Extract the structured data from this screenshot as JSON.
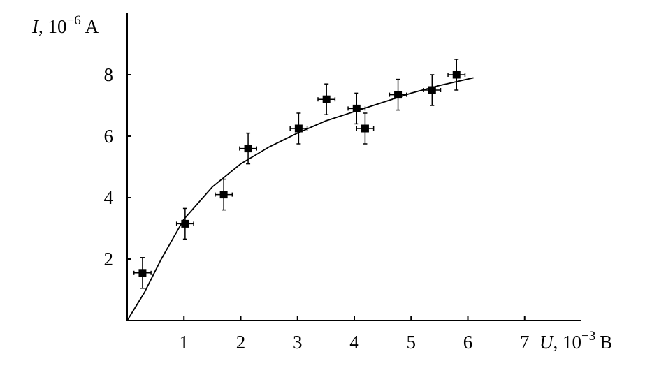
{
  "chart_data": {
    "type": "scatter",
    "x_label": {
      "symbol": "U",
      "text": ", 10",
      "exponent": "−3",
      "unit": "B"
    },
    "y_label": {
      "symbol": "I",
      "text": ", 10",
      "exponent": "−6",
      "unit": "A"
    },
    "xlim": [
      0,
      8
    ],
    "ylim": [
      0,
      10
    ],
    "xticks": [
      1,
      2,
      3,
      4,
      5,
      6,
      7
    ],
    "yticks": [
      2,
      4,
      6,
      8
    ],
    "series": [
      {
        "color": "#000000",
        "marker": "square",
        "x": [
          0.27,
          1.02,
          1.7,
          2.13,
          3.02,
          3.51,
          4.04,
          4.19,
          4.77,
          5.37,
          5.8
        ],
        "values": [
          1.55,
          3.15,
          4.1,
          5.6,
          6.25,
          7.2,
          6.9,
          6.25,
          7.35,
          7.5,
          8.0
        ],
        "xerr": [
          0.15,
          0.15,
          0.15,
          0.15,
          0.15,
          0.15,
          0.15,
          0.15,
          0.15,
          0.15,
          0.15
        ],
        "yerr": [
          0.5,
          0.5,
          0.5,
          0.5,
          0.5,
          0.5,
          0.5,
          0.5,
          0.5,
          0.5,
          0.5
        ]
      },
      {
        "color": "#000000",
        "marker": "line",
        "x": [
          0,
          0.3,
          0.6,
          1.0,
          1.5,
          2.0,
          2.5,
          3.0,
          3.5,
          4.0,
          4.5,
          5.0,
          5.5,
          6.1
        ],
        "values": [
          0,
          0.9,
          2.0,
          3.3,
          4.35,
          5.1,
          5.65,
          6.1,
          6.5,
          6.8,
          7.1,
          7.4,
          7.65,
          7.9
        ]
      }
    ]
  }
}
